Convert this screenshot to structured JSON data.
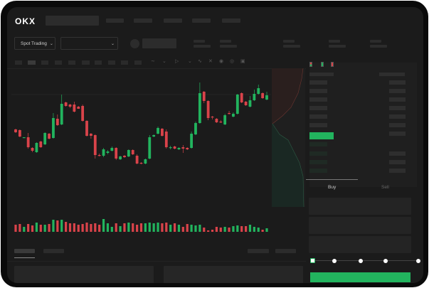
{
  "header": {
    "logo": "OKX"
  },
  "market": {
    "mode_selector": "Spot Trading",
    "pair_selector": ""
  },
  "order_form": {
    "tabs": [
      "Buy",
      "Sell"
    ],
    "active_tab": "Buy",
    "slider_percent": 0,
    "slider_marks": [
      0,
      25,
      50,
      75,
      100
    ]
  },
  "colors": {
    "up": "#22b45e",
    "down": "#d9434a",
    "background": "#1b1b1b",
    "frame": "#0a0a0a"
  },
  "chart_data": {
    "type": "candlestick",
    "title": "",
    "candles_ohlc": [
      [
        119,
        120,
        114,
        115
      ],
      [
        118,
        119,
        108,
        109
      ],
      [
        107,
        108,
        107,
        108
      ],
      [
        108,
        114,
        92,
        94
      ],
      [
        93,
        94,
        87,
        89
      ],
      [
        87,
        101,
        86,
        100
      ],
      [
        102,
        103,
        93,
        94
      ],
      [
        98,
        115,
        97,
        114
      ],
      [
        113,
        114,
        105,
        106
      ],
      [
        107,
        142,
        106,
        135
      ],
      [
        134,
        140,
        124,
        125
      ],
      [
        126,
        168,
        125,
        155
      ],
      [
        157,
        158,
        151,
        152
      ],
      [
        154,
        155,
        149,
        151
      ],
      [
        154,
        158,
        143,
        144
      ],
      [
        151,
        152,
        148,
        148
      ],
      [
        152,
        154,
        130,
        131
      ],
      [
        131,
        132,
        109,
        110
      ],
      [
        113,
        114,
        106,
        110
      ],
      [
        111,
        112,
        78,
        83
      ],
      [
        83,
        85,
        81,
        82
      ],
      [
        82,
        93,
        80,
        91
      ],
      [
        86,
        90,
        84,
        88
      ],
      [
        89,
        95,
        88,
        93
      ],
      [
        93,
        94,
        76,
        78
      ],
      [
        77,
        82,
        76,
        81
      ],
      [
        82,
        83,
        79,
        80
      ],
      [
        81,
        91,
        80,
        90
      ],
      [
        90,
        91,
        83,
        84
      ],
      [
        82,
        84,
        70,
        71
      ],
      [
        72,
        73,
        70,
        71
      ],
      [
        71,
        78,
        70,
        77
      ],
      [
        78,
        111,
        77,
        108
      ],
      [
        109,
        112,
        108,
        111
      ],
      [
        113,
        123,
        112,
        121
      ],
      [
        120,
        121,
        109,
        110
      ],
      [
        116,
        119,
        92,
        94
      ],
      [
        93,
        96,
        91,
        94
      ],
      [
        95,
        96,
        91,
        92
      ],
      [
        91,
        94,
        90,
        93
      ],
      [
        94,
        97,
        86,
        92
      ],
      [
        93,
        94,
        90,
        91
      ],
      [
        93,
        116,
        92,
        113
      ],
      [
        112,
        130,
        111,
        128
      ],
      [
        128,
        185,
        127,
        170
      ],
      [
        172,
        173,
        156,
        159
      ],
      [
        159,
        160,
        132,
        135
      ],
      [
        137,
        138,
        133,
        136
      ],
      [
        134,
        135,
        128,
        129
      ],
      [
        130,
        132,
        128,
        129
      ],
      [
        126,
        141,
        125,
        139
      ],
      [
        142,
        145,
        140,
        141
      ],
      [
        137,
        143,
        136,
        141
      ],
      [
        141,
        169,
        140,
        168
      ],
      [
        170,
        171,
        156,
        157
      ],
      [
        158,
        159,
        152,
        153
      ],
      [
        151,
        166,
        150,
        160
      ],
      [
        160,
        175,
        159,
        169
      ],
      [
        169,
        182,
        168,
        177
      ],
      [
        170,
        171,
        162,
        163
      ],
      [
        161,
        172,
        160,
        167
      ]
    ],
    "volumes": [
      10,
      11,
      7,
      11,
      9,
      13,
      10,
      10,
      11,
      17,
      16,
      17,
      14,
      12,
      12,
      10,
      11,
      13,
      11,
      12,
      10,
      18,
      12,
      7,
      12,
      8,
      12,
      13,
      12,
      10,
      12,
      12,
      13,
      12,
      13,
      12,
      13,
      10,
      12,
      10,
      7,
      11,
      10,
      9,
      10,
      6,
      2,
      3,
      7,
      6,
      7,
      6,
      8,
      9,
      8,
      8,
      10,
      7,
      6,
      3,
      5
    ],
    "grid": false,
    "depth_chart": {
      "type": "area",
      "series": [
        "asks",
        "bids"
      ]
    }
  }
}
